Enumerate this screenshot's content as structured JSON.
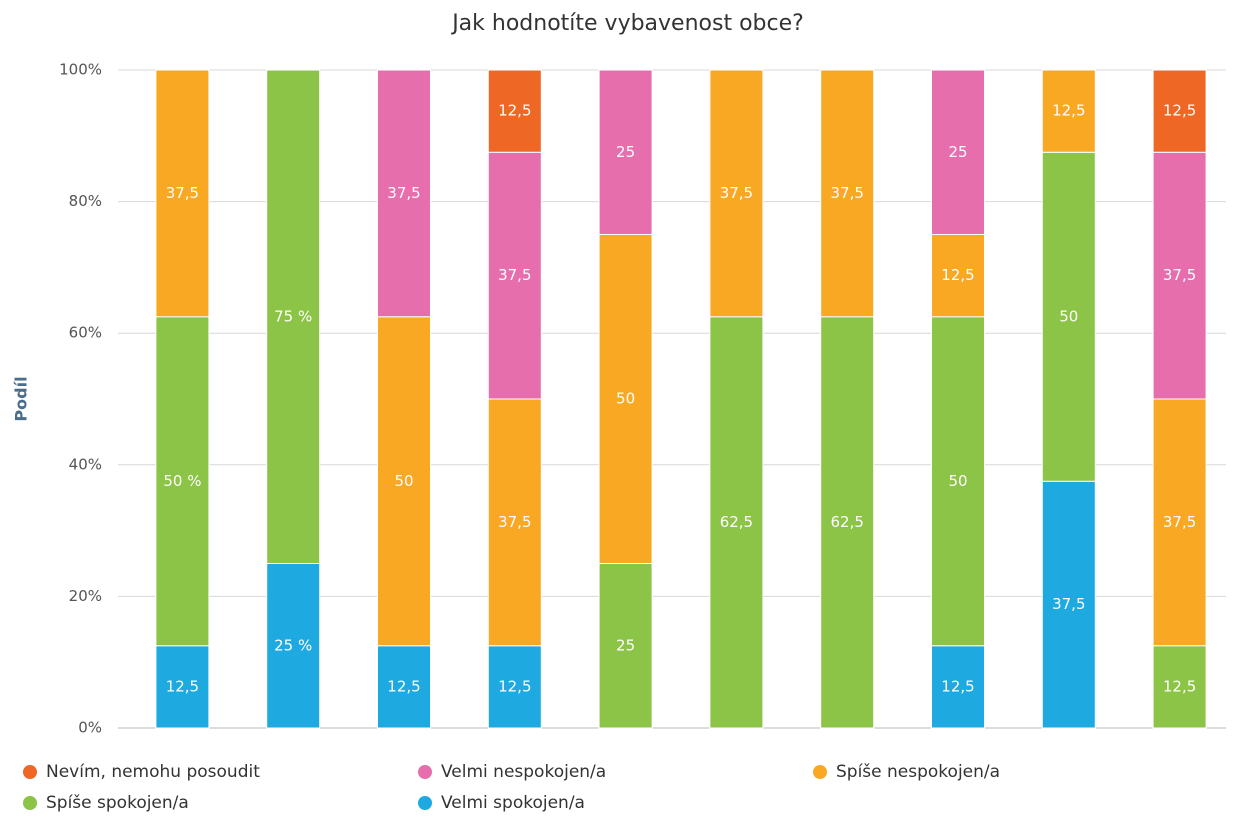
{
  "chart_data": {
    "type": "stacked_bar",
    "title": "Jak hodnotíte vybavenost obce?",
    "y_label": "Podíl",
    "categories": [
      null,
      null,
      null,
      null,
      null,
      null,
      null,
      null,
      null,
      null
    ],
    "series": [
      {
        "name": "Nevím, nemohu posoudit",
        "color": "#ef6724",
        "values": [
          0,
          0,
          0,
          12.5,
          0,
          0,
          0,
          0,
          0,
          12.5
        ],
        "value_labels": [
          null,
          null,
          null,
          "12,5",
          null,
          null,
          null,
          null,
          null,
          "12,5"
        ]
      },
      {
        "name": "Velmi nespokojen/a",
        "color": "#e66eac",
        "values": [
          0,
          0,
          37.5,
          37.5,
          25,
          0,
          0,
          25,
          0,
          37.5
        ],
        "value_labels": [
          null,
          null,
          "37,5",
          "37,5",
          "25",
          null,
          null,
          "25",
          null,
          "37,5"
        ]
      },
      {
        "name": "Spíše nespokojen/a",
        "color": "#f9a823",
        "values": [
          37.5,
          0,
          50,
          37.5,
          50,
          37.5,
          37.5,
          12.5,
          12.5,
          37.5
        ],
        "value_labels": [
          "37,5",
          null,
          "50",
          "37,5",
          "50",
          "37,5",
          "37,5",
          "12,5",
          "12,5",
          "37,5"
        ]
      },
      {
        "name": "Spíše spokojen/a",
        "color": "#8bc447",
        "values": [
          50,
          75,
          0,
          0,
          25,
          62.5,
          62.5,
          50,
          50,
          12.5
        ],
        "value_labels": [
          "50 %",
          "75 %",
          null,
          null,
          "25",
          "62,5",
          "62,5",
          "50",
          "50",
          "12,5"
        ]
      },
      {
        "name": "Velmi spokojen/a",
        "color": "#1eaae1",
        "values": [
          12.5,
          25,
          12.5,
          12.5,
          0,
          0,
          0,
          12.5,
          37.5,
          0
        ],
        "value_labels": [
          "12,5",
          "25 %",
          "12,5",
          "12,5",
          null,
          null,
          null,
          "12,5",
          "37,5",
          null
        ]
      }
    ],
    "ylim": [
      0,
      100
    ],
    "yticks": [
      {
        "value": 0,
        "label": "0%"
      },
      {
        "value": 20,
        "label": "20%"
      },
      {
        "value": 40,
        "label": "40%"
      },
      {
        "value": 60,
        "label": "60%"
      },
      {
        "value": 80,
        "label": "80%"
      },
      {
        "value": 100,
        "label": "100%"
      }
    ],
    "grid": true
  }
}
